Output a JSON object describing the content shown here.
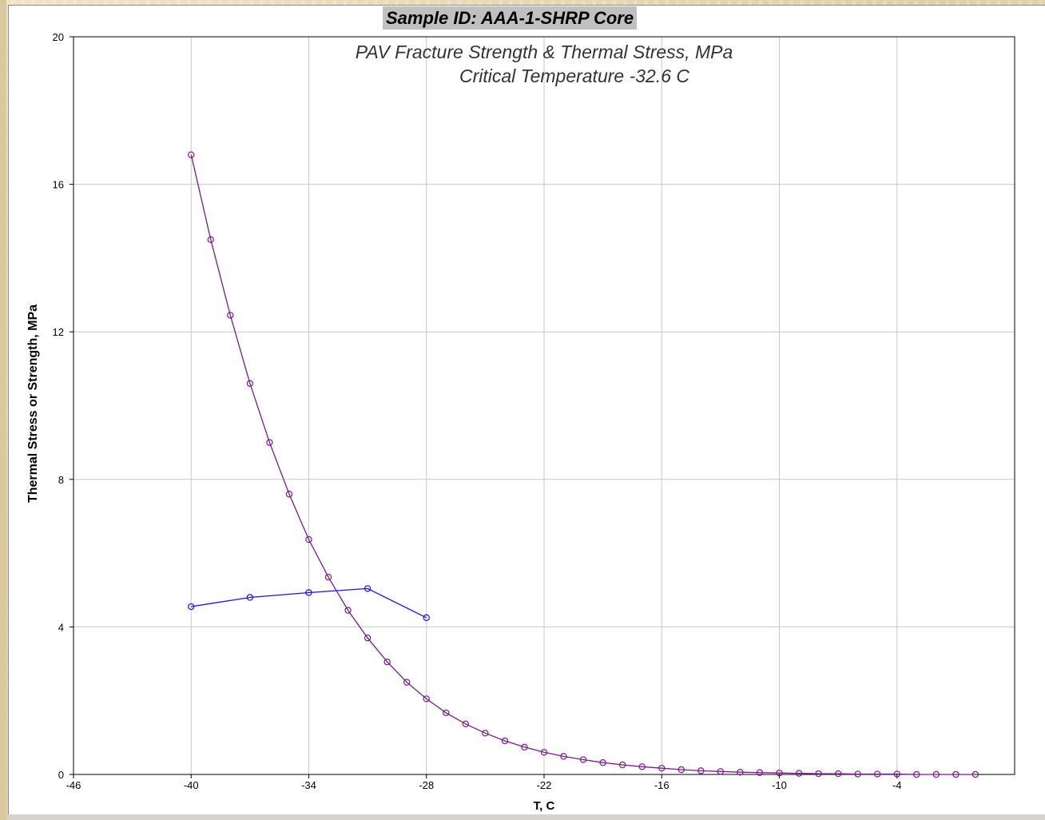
{
  "sample_title": "Sample ID: AAA-1-SHRP Core",
  "colors": {
    "strength_series": "#1414ff",
    "stress_series": "#7b1a8e",
    "grid": "#c8c8c8",
    "title_bg": "#c0c0c0"
  },
  "chart_data": {
    "type": "line",
    "title": "PAV Fracture Strength & Thermal Stress, MPa",
    "subtitle": "Critical Temperature -32.6 C",
    "xlabel": "T, C",
    "ylabel": "Thermal Stress or Strength, MPa",
    "xlim": [
      -46,
      2
    ],
    "ylim": [
      0,
      20
    ],
    "xticks": [
      -46,
      -40,
      -34,
      -28,
      -22,
      -16,
      -10,
      -4
    ],
    "xtick_labels": [
      "-46",
      "-40",
      "-34",
      "-28",
      "-22",
      "-16",
      "-10",
      "-4"
    ],
    "yticks": [
      0,
      4,
      8,
      12,
      16,
      20
    ],
    "ytick_labels": [
      "0",
      "4",
      "8",
      "12",
      "16",
      "20"
    ],
    "grid": true,
    "marker": "circle",
    "series": [
      {
        "color": "#1414ff",
        "x": [
          -40,
          -37,
          -34,
          -31,
          -28
        ],
        "y": [
          4.55,
          4.8,
          4.93,
          5.04,
          4.25
        ]
      },
      {
        "color": "#7b1a8e",
        "x": [
          -40,
          -39,
          -38,
          -37,
          -36,
          -35,
          -34,
          -33,
          -32,
          -31,
          -30,
          -29,
          -28,
          -27,
          -26,
          -25,
          -24,
          -23,
          -22,
          -21,
          -20,
          -19,
          -18,
          -17,
          -16,
          -15,
          -14,
          -13,
          -12,
          -11,
          -10,
          -9,
          -8,
          -7,
          -6,
          -5,
          -4,
          -3,
          -2,
          -1,
          0
        ],
        "y": [
          16.8,
          14.5,
          12.45,
          10.6,
          9.0,
          7.6,
          6.37,
          5.35,
          4.45,
          3.7,
          3.05,
          2.5,
          2.05,
          1.67,
          1.37,
          1.12,
          0.91,
          0.74,
          0.6,
          0.49,
          0.4,
          0.32,
          0.26,
          0.21,
          0.17,
          0.13,
          0.1,
          0.08,
          0.06,
          0.05,
          0.04,
          0.03,
          0.02,
          0.02,
          0.01,
          0.01,
          0.01,
          0.0,
          0.0,
          0.0,
          0.0
        ]
      }
    ]
  }
}
